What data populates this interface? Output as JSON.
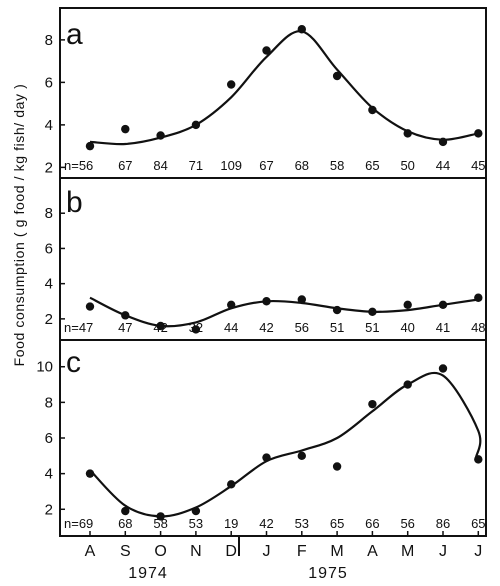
{
  "ylabel": "Food consumption ( g food / kg fish/ day )",
  "months": [
    "A",
    "S",
    "O",
    "N",
    "D",
    "J",
    "F",
    "M",
    "A",
    "M",
    "J",
    "J"
  ],
  "years": [
    "1974",
    "1975"
  ],
  "chart_data": [
    {
      "type": "scatter",
      "panel_label": "a",
      "ylim": [
        1.5,
        9.5
      ],
      "yticks": [
        2,
        4,
        6,
        8
      ],
      "x": [
        "A",
        "S",
        "O",
        "N",
        "D",
        "J",
        "F",
        "M",
        "A",
        "M",
        "J",
        "J"
      ],
      "values": [
        3.0,
        3.8,
        3.5,
        4.0,
        5.9,
        7.5,
        8.5,
        6.3,
        4.7,
        3.6,
        3.2,
        3.6
      ],
      "trend": [
        3.2,
        3.1,
        3.4,
        4.0,
        5.3,
        7.2,
        8.4,
        6.6,
        4.8,
        3.7,
        3.3,
        3.6
      ],
      "n_prefix": "n=",
      "n": [
        "56",
        "67",
        "84",
        "71",
        "109",
        "67",
        "68",
        "58",
        "65",
        "50",
        "44",
        "45"
      ]
    },
    {
      "type": "scatter",
      "panel_label": "b",
      "ylim": [
        0.8,
        10
      ],
      "yticks": [
        2,
        4,
        6,
        8
      ],
      "x": [
        "A",
        "S",
        "O",
        "N",
        "D",
        "J",
        "F",
        "M",
        "A",
        "M",
        "J",
        "J"
      ],
      "values": [
        2.7,
        2.2,
        1.6,
        1.4,
        2.8,
        3.0,
        3.1,
        2.5,
        2.4,
        2.8,
        2.8,
        3.2
      ],
      "trend": [
        3.2,
        2.2,
        1.6,
        1.8,
        2.6,
        3.0,
        2.9,
        2.6,
        2.4,
        2.5,
        2.8,
        3.1
      ],
      "n_prefix": "n=",
      "n": [
        "47",
        "47",
        "42",
        "32",
        "44",
        "42",
        "56",
        "51",
        "51",
        "40",
        "41",
        "48"
      ]
    },
    {
      "type": "scatter",
      "panel_label": "c",
      "ylim": [
        0.5,
        11.5
      ],
      "yticks": [
        2,
        4,
        6,
        8,
        10
      ],
      "x": [
        "A",
        "S",
        "O",
        "N",
        "D",
        "J",
        "F",
        "M",
        "A",
        "M",
        "J",
        "J"
      ],
      "values": [
        4.0,
        1.9,
        1.6,
        1.9,
        3.4,
        4.9,
        5.0,
        4.4,
        7.9,
        9.0,
        9.9,
        4.8
      ],
      "trend": [
        4.2,
        2.2,
        1.6,
        2.1,
        3.3,
        4.7,
        5.3,
        6.0,
        7.5,
        9.0,
        9.5,
        6.4
      ],
      "trend_end": 4.9,
      "n_prefix": "n=",
      "n": [
        "69",
        "68",
        "58",
        "53",
        "19",
        "42",
        "53",
        "65",
        "66",
        "56",
        "86",
        "65"
      ]
    }
  ]
}
